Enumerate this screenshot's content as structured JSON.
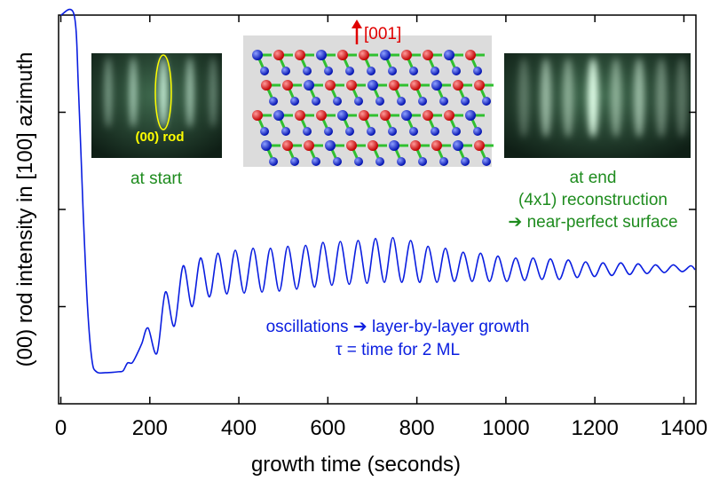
{
  "chart_data": {
    "type": "line",
    "x_label": "growth time (seconds)",
    "y_label": "(00) rod intensity in [100] azimuth",
    "color": "#0a1ee0",
    "xlim": [
      -5,
      1427
    ],
    "xticks": [
      0,
      200,
      400,
      600,
      800,
      1000,
      1200,
      1400
    ],
    "ylim": [
      0,
      4
    ],
    "yticks": [
      1,
      2,
      3
    ],
    "x": [
      0,
      30,
      40,
      50,
      60,
      70,
      80,
      100,
      130,
      140,
      150,
      160,
      170,
      182,
      196,
      216,
      235,
      255,
      275,
      295,
      314,
      334,
      353,
      373,
      392,
      412,
      432,
      452,
      471,
      491,
      510,
      530,
      550,
      570,
      589,
      609,
      628,
      648,
      668,
      688,
      707,
      727,
      746,
      766,
      786,
      806,
      825,
      845,
      864,
      884,
      904,
      924,
      943,
      963,
      982,
      1002,
      1022,
      1042,
      1061,
      1081,
      1100,
      1120,
      1140,
      1160,
      1179,
      1199,
      1218,
      1238,
      1258,
      1278,
      1297,
      1317,
      1336,
      1356,
      1376,
      1396,
      1415,
      1425
    ],
    "values": [
      4.0,
      4.0,
      3.2,
      2.0,
      1.0,
      0.45,
      0.33,
      0.32,
      0.33,
      0.34,
      0.42,
      0.42,
      0.5,
      0.62,
      0.78,
      0.52,
      1.15,
      0.8,
      1.42,
      1.0,
      1.5,
      1.1,
      1.55,
      1.13,
      1.58,
      1.14,
      1.6,
      1.15,
      1.6,
      1.16,
      1.62,
      1.18,
      1.63,
      1.2,
      1.66,
      1.22,
      1.67,
      1.23,
      1.68,
      1.24,
      1.7,
      1.25,
      1.71,
      1.25,
      1.68,
      1.25,
      1.62,
      1.25,
      1.6,
      1.26,
      1.56,
      1.26,
      1.55,
      1.26,
      1.52,
      1.26,
      1.5,
      1.27,
      1.5,
      1.28,
      1.49,
      1.28,
      1.48,
      1.3,
      1.46,
      1.31,
      1.45,
      1.32,
      1.45,
      1.33,
      1.44,
      1.34,
      1.43,
      1.35,
      1.43,
      1.36,
      1.42,
      1.38
    ],
    "annotations": {
      "rod": "(00) rod",
      "start": "at start",
      "direction": "[001]",
      "end": "at end",
      "reconstruction": "(4x1) reconstruction",
      "surface": "➔ near-perfect surface",
      "oscillations": "oscillations ➔ layer-by-layer growth",
      "tau": "τ = time for 2 ML"
    }
  }
}
